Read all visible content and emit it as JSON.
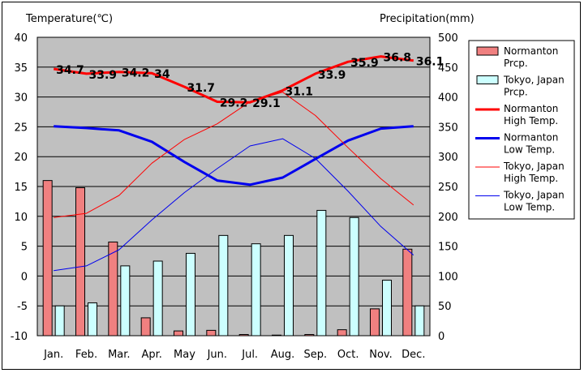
{
  "chart_data": {
    "type": "bar+line",
    "ylabel_left": "Temperature(℃)",
    "ylabel_right": "Precipitation(mm)",
    "ylim_left": [
      -10,
      40
    ],
    "ylim_right": [
      0,
      500
    ],
    "yticks_left": [
      "40",
      "35",
      "30",
      "25",
      "20",
      "15",
      "10",
      "5",
      "0",
      "-5",
      "-10"
    ],
    "yticks_right": [
      "500",
      "450",
      "400",
      "350",
      "300",
      "250",
      "200",
      "150",
      "100",
      "50",
      "0"
    ],
    "categories": [
      "Jan.",
      "Feb.",
      "Mar.",
      "Apr.",
      "May",
      "Jun.",
      "Jul.",
      "Aug.",
      "Sep.",
      "Oct.",
      "Nov.",
      "Dec."
    ],
    "bars": [
      {
        "name": "Normanton\nPrcp.",
        "color": "#f08080",
        "values": [
          260,
          248,
          157,
          30,
          8,
          9,
          2,
          1,
          2,
          10,
          45,
          145
        ]
      },
      {
        "name": "Tokyo, Japan\nPrcp.",
        "color": "#ccffff",
        "values": [
          50,
          55,
          117,
          125,
          138,
          168,
          154,
          168,
          210,
          198,
          93,
          50
        ]
      }
    ],
    "lines": [
      {
        "name": "Normanton\nHigh Temp.",
        "color": "#ff0000",
        "width": 3,
        "values": [
          34.7,
          33.9,
          34.2,
          34,
          31.7,
          29.2,
          29.1,
          31.1,
          33.9,
          35.9,
          36.8,
          36.1
        ],
        "labels": [
          "34.7",
          "33.9",
          "34.2",
          "34",
          "31.7",
          "29.2",
          "29.1",
          "31.1",
          "33.9",
          "35.9",
          "36.8",
          "36.1"
        ]
      },
      {
        "name": "Normanton\nLow Temp.",
        "color": "#0000ee",
        "width": 3,
        "values": [
          25.1,
          24.8,
          24.4,
          22.5,
          19.1,
          16,
          15.3,
          16.5,
          19.6,
          22.7,
          24.7,
          25.1
        ]
      },
      {
        "name": "Tokyo, Japan\nHigh Temp.",
        "color": "#ff0000",
        "width": 1,
        "values": [
          9.8,
          10.5,
          13.5,
          18.9,
          22.9,
          25.5,
          29.2,
          30.8,
          26.9,
          21.5,
          16.3,
          11.9
        ]
      },
      {
        "name": "Tokyo, Japan\nLow Temp.",
        "color": "#0000ee",
        "width": 1,
        "values": [
          0.9,
          1.7,
          4.4,
          9.4,
          14,
          18,
          21.8,
          23,
          19.7,
          14.2,
          8.3,
          3.5
        ]
      }
    ]
  }
}
